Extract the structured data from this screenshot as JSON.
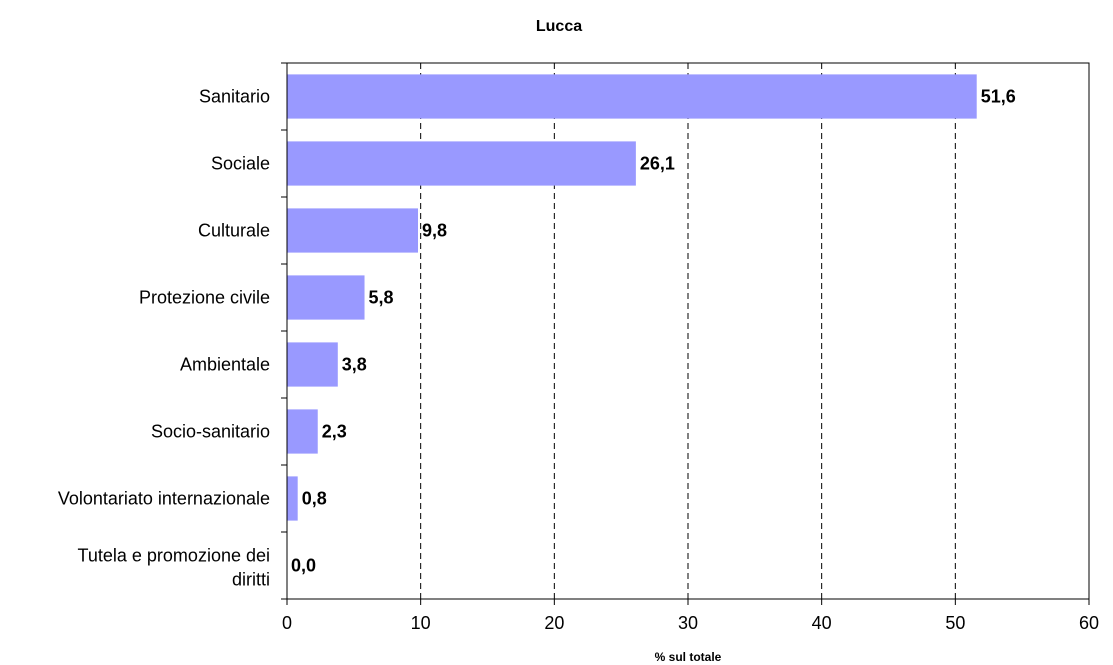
{
  "chart_data": {
    "type": "bar",
    "orientation": "horizontal",
    "title": "Lucca",
    "xlabel": "% sul totale",
    "ylabel": "",
    "xlim": [
      0,
      60
    ],
    "xticks": [
      0,
      10,
      20,
      30,
      40,
      50,
      60
    ],
    "grid": "vertical dashed",
    "categories": [
      "Sanitario",
      "Sociale",
      "Culturale",
      "Protezione civile",
      "Ambientale",
      "Socio-sanitario",
      "Volontariato internazionale",
      "Tutela e promozione dei diritti"
    ],
    "values": [
      51.6,
      26.1,
      9.8,
      5.8,
      3.8,
      2.3,
      0.8,
      0.0
    ],
    "value_labels": [
      "51,6",
      "26,1",
      "9,8",
      "5,8",
      "3,8",
      "2,3",
      "0,8",
      "0,0"
    ],
    "bar_color": "#9999ff"
  }
}
